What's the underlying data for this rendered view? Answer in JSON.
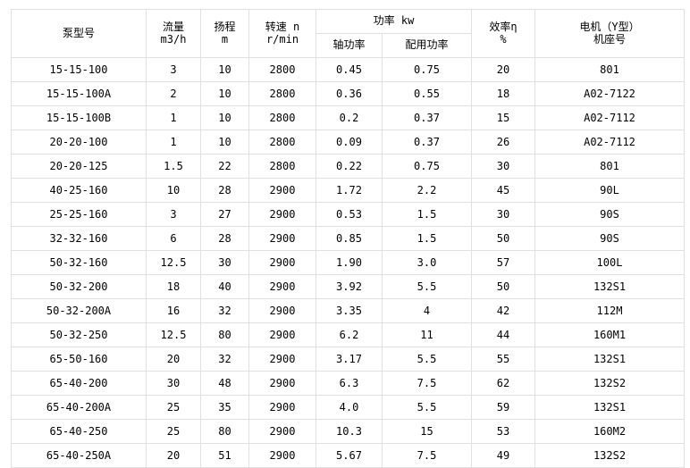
{
  "table": {
    "headers": {
      "pump_model": "泵型号",
      "flow_line1": "流量",
      "flow_line2": "m3/h",
      "head_line1": "扬程",
      "head_line2": "m",
      "speed_line1": "转速 n",
      "speed_line2": "r/min",
      "power_group": "功率 kw",
      "shaft_power": "轴功率",
      "rated_power": "配用功率",
      "efficiency_line1": "效率η",
      "efficiency_line2": "%",
      "motor_line1": "电机（Y型）",
      "motor_line2": "机座号"
    },
    "border_color": "#e0e0e0",
    "rows": [
      [
        "15-15-100",
        "3",
        "10",
        "2800",
        "0.45",
        "0.75",
        "20",
        "801"
      ],
      [
        "15-15-100A",
        "2",
        "10",
        "2800",
        "0.36",
        "0.55",
        "18",
        "A02-7122"
      ],
      [
        "15-15-100B",
        "1",
        "10",
        "2800",
        "0.2",
        "0.37",
        "15",
        "A02-7112"
      ],
      [
        "20-20-100",
        "1",
        "10",
        "2800",
        "0.09",
        "0.37",
        "26",
        "A02-7112"
      ],
      [
        "20-20-125",
        "1.5",
        "22",
        "2800",
        "0.22",
        "0.75",
        "30",
        "801"
      ],
      [
        "40-25-160",
        "10",
        "28",
        "2900",
        "1.72",
        "2.2",
        "45",
        "90L"
      ],
      [
        "25-25-160",
        "3",
        "27",
        "2900",
        "0.53",
        "1.5",
        "30",
        "90S"
      ],
      [
        "32-32-160",
        "6",
        "28",
        "2900",
        "0.85",
        "1.5",
        "50",
        "90S"
      ],
      [
        "50-32-160",
        "12.5",
        "30",
        "2900",
        "1.90",
        "3.0",
        "57",
        "100L"
      ],
      [
        "50-32-200",
        "18",
        "40",
        "2900",
        "3.92",
        "5.5",
        "50",
        "132S1"
      ],
      [
        "50-32-200A",
        "16",
        "32",
        "2900",
        "3.35",
        "4",
        "42",
        "112M"
      ],
      [
        "50-32-250",
        "12.5",
        "80",
        "2900",
        "6.2",
        "11",
        "44",
        "160M1"
      ],
      [
        "65-50-160",
        "20",
        "32",
        "2900",
        "3.17",
        "5.5",
        "55",
        "132S1"
      ],
      [
        "65-40-200",
        "30",
        "48",
        "2900",
        "6.3",
        "7.5",
        "62",
        "132S2"
      ],
      [
        "65-40-200A",
        "25",
        "35",
        "2900",
        "4.0",
        "5.5",
        "59",
        "132S1"
      ],
      [
        "65-40-250",
        "25",
        "80",
        "2900",
        "10.3",
        "15",
        "53",
        "160M2"
      ],
      [
        "65-40-250A",
        "20",
        "51",
        "2900",
        "5.67",
        "7.5",
        "49",
        "132S2"
      ]
    ]
  }
}
